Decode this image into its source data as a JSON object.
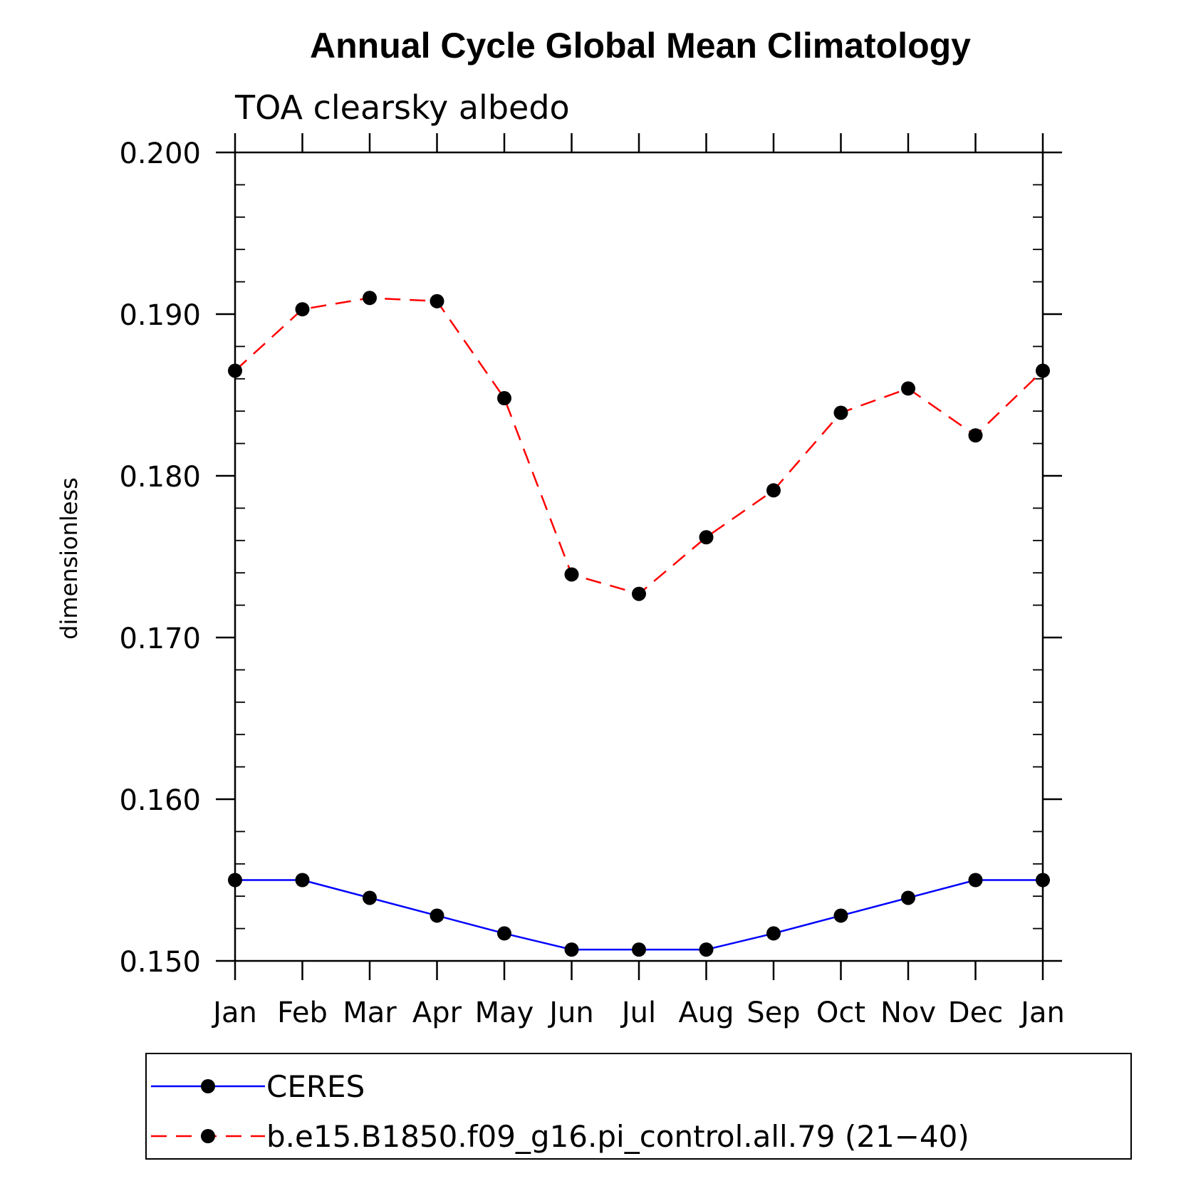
{
  "chart_data": {
    "type": "line",
    "title": "Annual Cycle Global Mean Climatology",
    "subtitle": "TOA clearsky albedo",
    "xlabel": "",
    "ylabel": "dimensionless",
    "categories": [
      "Jan",
      "Feb",
      "Mar",
      "Apr",
      "May",
      "Jun",
      "Jul",
      "Aug",
      "Sep",
      "Oct",
      "Nov",
      "Dec",
      "Jan"
    ],
    "ylim": [
      0.15,
      0.2
    ],
    "yticks": [
      "0.150",
      "0.160",
      "0.170",
      "0.180",
      "0.190",
      "0.200"
    ],
    "grid": false,
    "legend_position": "bottom",
    "series": [
      {
        "name": "CERES",
        "color": "#0000ff",
        "style": "solid",
        "values": [
          0.155,
          0.155,
          0.1539,
          0.1528,
          0.1517,
          0.1507,
          0.1507,
          0.1507,
          0.1517,
          0.1528,
          0.1539,
          0.155,
          0.155
        ]
      },
      {
        "name": "b.e15.B1850.f09_g16.pi_control.all.79 (21−40)",
        "color": "#ff0000",
        "style": "dashed",
        "values": [
          0.1865,
          0.1903,
          0.191,
          0.1908,
          0.1848,
          0.1739,
          0.1727,
          0.1762,
          0.1791,
          0.1839,
          0.1854,
          0.1825,
          0.1865
        ]
      }
    ]
  }
}
